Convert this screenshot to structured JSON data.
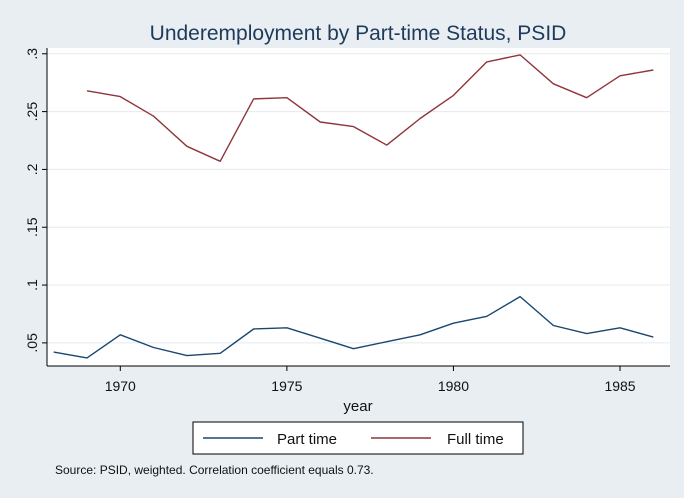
{
  "chart_data": {
    "type": "line",
    "title": "Underemployment by Part-time Status, PSID",
    "xlabel": "year",
    "ylabel": "",
    "xlim": [
      1967.8,
      1986.5
    ],
    "ylim": [
      0.03,
      0.305
    ],
    "x_ticks": [
      1970,
      1975,
      1980,
      1985
    ],
    "x_tick_labels": [
      "1970",
      "1975",
      "1980",
      "1985"
    ],
    "y_ticks": [
      0.05,
      0.1,
      0.15,
      0.2,
      0.25,
      0.3
    ],
    "y_tick_labels": [
      ".05",
      ".1",
      ".15",
      ".2",
      ".25",
      ".3"
    ],
    "grid": true,
    "legend_position": "bottom",
    "series": [
      {
        "name": "Part time",
        "color": "#1a476f",
        "x": [
          1968,
          1969,
          1970,
          1971,
          1972,
          1973,
          1974,
          1975,
          1976,
          1977,
          1978,
          1979,
          1980,
          1981,
          1982,
          1983,
          1984,
          1985,
          1986
        ],
        "y": [
          0.042,
          0.037,
          0.057,
          0.046,
          0.039,
          0.041,
          0.062,
          0.063,
          0.054,
          0.045,
          0.051,
          0.057,
          0.067,
          0.073,
          0.09,
          0.065,
          0.058,
          0.063,
          0.055
        ]
      },
      {
        "name": "Full time",
        "color": "#90353b",
        "x": [
          1969,
          1970,
          1971,
          1972,
          1973,
          1974,
          1975,
          1976,
          1977,
          1978,
          1979,
          1980,
          1981,
          1982,
          1983,
          1984,
          1985,
          1986
        ],
        "y": [
          0.268,
          0.263,
          0.246,
          0.22,
          0.207,
          0.261,
          0.262,
          0.241,
          0.237,
          0.221,
          0.244,
          0.264,
          0.293,
          0.299,
          0.274,
          0.262,
          0.281,
          0.286
        ]
      }
    ],
    "note": "Source: PSID, weighted. Correlation coefficient equals 0.73."
  }
}
